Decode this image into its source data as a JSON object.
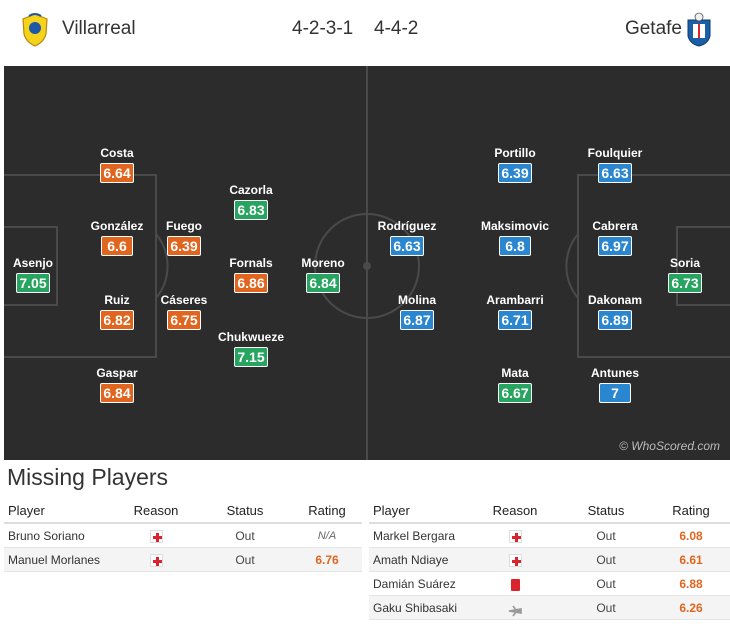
{
  "home": {
    "team": "Villarreal",
    "formation": "4-2-3-1"
  },
  "away": {
    "team": "Getafe",
    "formation": "4-4-2"
  },
  "watermark": "© WhoScored.com",
  "rating_colors": {
    "orange": "#e0661f",
    "green": "#27a45f",
    "blue": "#2b86d0"
  },
  "home_players": [
    {
      "name": "Asenjo",
      "rating": "7.05",
      "color": "green"
    },
    {
      "name": "Costa",
      "rating": "6.64",
      "color": "orange"
    },
    {
      "name": "González",
      "rating": "6.6",
      "color": "orange"
    },
    {
      "name": "Ruiz",
      "rating": "6.82",
      "color": "orange"
    },
    {
      "name": "Gaspar",
      "rating": "6.84",
      "color": "orange"
    },
    {
      "name": "Fuego",
      "rating": "6.39",
      "color": "orange"
    },
    {
      "name": "Cáseres",
      "rating": "6.75",
      "color": "orange"
    },
    {
      "name": "Cazorla",
      "rating": "6.83",
      "color": "green"
    },
    {
      "name": "Fornals",
      "rating": "6.86",
      "color": "orange"
    },
    {
      "name": "Chukwueze",
      "rating": "7.15",
      "color": "green"
    },
    {
      "name": "Moreno",
      "rating": "6.84",
      "color": "green"
    }
  ],
  "away_players": [
    {
      "name": "Rodríguez",
      "rating": "6.63",
      "color": "blue"
    },
    {
      "name": "Molina",
      "rating": "6.87",
      "color": "blue"
    },
    {
      "name": "Portillo",
      "rating": "6.39",
      "color": "blue"
    },
    {
      "name": "Maksimovic",
      "rating": "6.8",
      "color": "blue"
    },
    {
      "name": "Arambarri",
      "rating": "6.71",
      "color": "blue"
    },
    {
      "name": "Mata",
      "rating": "6.67",
      "color": "green"
    },
    {
      "name": "Foulquier",
      "rating": "6.63",
      "color": "blue"
    },
    {
      "name": "Cabrera",
      "rating": "6.97",
      "color": "blue"
    },
    {
      "name": "Dakonam",
      "rating": "6.89",
      "color": "blue"
    },
    {
      "name": "Antunes",
      "rating": "7",
      "color": "blue"
    },
    {
      "name": "Soria",
      "rating": "6.73",
      "color": "green"
    }
  ],
  "missing": {
    "title": "Missing Players",
    "headers": {
      "player": "Player",
      "reason": "Reason",
      "status": "Status",
      "rating": "Rating"
    },
    "home": [
      {
        "player": "Bruno Soriano",
        "reason_icon": "injury-icon",
        "status": "Out",
        "rating": "N/A"
      },
      {
        "player": "Manuel Morlanes",
        "reason_icon": "injury-icon",
        "status": "Out",
        "rating": "6.76"
      }
    ],
    "away": [
      {
        "player": "Markel Bergara",
        "reason_icon": "injury-icon",
        "status": "Out",
        "rating": "6.08"
      },
      {
        "player": "Amath Ndiaye",
        "reason_icon": "injury-icon",
        "status": "Out",
        "rating": "6.61"
      },
      {
        "player": "Damián Suárez",
        "reason_icon": "red-card-icon",
        "status": "Out",
        "rating": "6.88"
      },
      {
        "player": "Gaku Shibasaki",
        "reason_icon": "plane-icon",
        "status": "Out",
        "rating": "6.26"
      }
    ]
  }
}
